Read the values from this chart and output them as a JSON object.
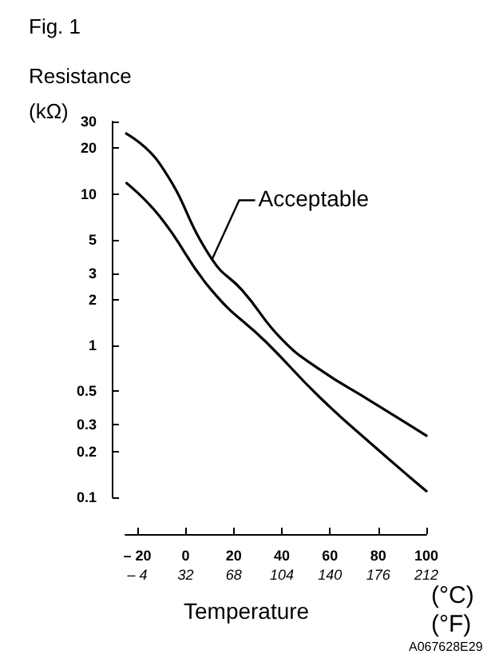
{
  "chart_data": {
    "type": "line",
    "title": "Fig. 1",
    "ylabel": "Resistance (kΩ)",
    "xlabel": "Temperature",
    "x2label": "(°F)",
    "log": "y",
    "grid": false,
    "marker": "none",
    "line_style": "solid",
    "xlim": [
      -25,
      100
    ],
    "xticks": [
      {
        "value": -20,
        "label": "– 20"
      },
      0,
      20,
      40,
      60,
      80,
      100
    ],
    "x2lim": [
      -13,
      212
    ],
    "x2ticks": [
      {
        "value": -4,
        "label": "– 4"
      },
      32,
      68,
      104,
      140,
      176,
      212
    ],
    "ylim": [
      0.1,
      30
    ],
    "yticks": [
      0.1,
      0.2,
      0.3,
      0.5,
      1,
      2,
      3,
      5,
      10,
      20,
      30
    ],
    "series": [
      {
        "color": "#000000",
        "x": [
          -24.6,
          -10.7,
          11,
          23.7,
          40,
          55.5,
          77,
          100
        ],
        "values": [
          25,
          15.8,
          3.7,
          2.3,
          1.1,
          0.7,
          0.43,
          0.255
        ]
      },
      {
        "color": "#000000",
        "x": [
          -24.5,
          -10.7,
          11,
          33.6,
          55.5,
          77,
          100
        ],
        "values": [
          11.8,
          7.1,
          2.3,
          1.05,
          0.46,
          0.226,
          0.11
        ]
      }
    ],
    "annotations": [
      {
        "text": "Acceptable",
        "x": 11,
        "y": 3.7
      },
      "(°C)",
      "A067628E29"
    ]
  }
}
